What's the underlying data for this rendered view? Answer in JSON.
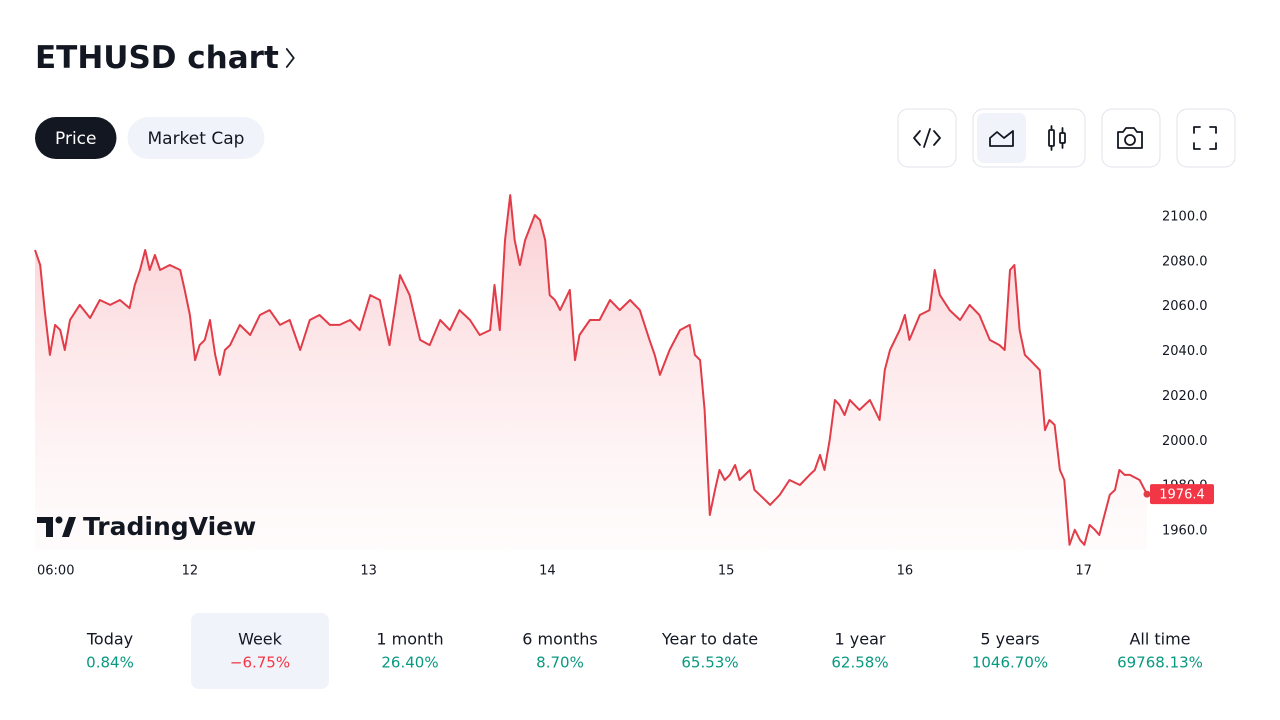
{
  "header": {
    "title": "ETHUSD chart"
  },
  "tabs": {
    "items": [
      "Price",
      "Market Cap"
    ],
    "active_index": 0
  },
  "watermark": "TradingView",
  "chart_data": {
    "type": "line",
    "color": "#e23c48",
    "x": [
      3.2,
      3.9,
      4.5,
      5.2,
      5.9,
      6.6,
      7.2,
      7.9,
      9.2,
      10.6,
      11.9,
      13.3,
      14.6,
      15.9,
      16.6,
      17.3,
      18.0,
      18.6,
      19.3,
      20.0,
      21.3,
      22.7,
      23.3,
      24.0,
      24.7,
      25.3,
      26.0,
      26.7,
      27.4,
      28.0,
      28.7,
      29.4,
      30.7,
      32.1,
      33.4,
      34.7,
      36.1,
      37.4,
      38.8,
      40.1,
      41.4,
      42.8,
      44.1,
      45.5,
      46.8,
      48.2,
      49.5,
      50.8,
      52.2,
      53.5,
      54.9,
      56.2,
      57.6,
      58.9,
      60.2,
      61.6,
      62.9,
      64.3,
      64.9,
      65.6,
      66.3,
      67.0,
      67.6,
      68.3,
      69.0,
      70.3,
      71.0,
      71.7,
      72.3,
      73.0,
      73.7,
      75.0,
      75.7,
      76.3,
      77.7,
      79.0,
      80.4,
      81.7,
      83.1,
      84.4,
      85.7,
      86.4,
      87.1,
      88.4,
      89.8,
      91.1,
      91.8,
      92.5,
      93.1,
      93.8,
      94.5,
      95.1,
      95.8,
      96.5,
      97.2,
      97.8,
      99.2,
      99.8,
      100.5,
      101.9,
      103.2,
      104.5,
      105.9,
      107.2,
      107.9,
      108.6,
      109.2,
      109.9,
      110.6,
      111.2,
      111.9,
      112.6,
      113.9,
      115.3,
      116.6,
      117.3,
      118.0,
      119.3,
      120.0,
      120.6,
      122.0,
      123.3,
      124.0,
      124.7,
      126.0,
      127.4,
      128.7,
      130.0,
      131.4,
      132.7,
      133.4,
      134.1,
      134.7,
      135.4,
      136.1,
      136.8,
      138.1,
      138.8,
      139.4,
      140.1,
      140.8,
      141.4,
      142.1,
      142.8,
      143.5,
      144.1,
      144.8,
      145.5,
      146.1,
      146.8,
      147.5,
      148.2,
      148.8,
      149.5,
      150.2,
      151.5,
      152.5
    ],
    "values": [
      2085.3,
      2078.6,
      2058.5,
      2038.5,
      2051.9,
      2049.6,
      2040.7,
      2054.1,
      2060.8,
      2055.0,
      2063.0,
      2060.8,
      2063.0,
      2059.4,
      2069.7,
      2076.4,
      2085.3,
      2076.4,
      2083.1,
      2076.4,
      2078.6,
      2076.4,
      2067.5,
      2056.3,
      2036.2,
      2042.9,
      2045.2,
      2054.1,
      2038.5,
      2029.6,
      2040.7,
      2042.9,
      2051.9,
      2047.4,
      2056.3,
      2058.5,
      2051.9,
      2054.1,
      2040.7,
      2054.1,
      2056.3,
      2051.9,
      2051.9,
      2054.1,
      2049.6,
      2065.2,
      2063.0,
      2042.9,
      2074.1,
      2065.2,
      2045.2,
      2042.9,
      2054.1,
      2049.6,
      2058.5,
      2054.1,
      2047.4,
      2049.6,
      2069.7,
      2049.6,
      2089.7,
      2109.8,
      2089.7,
      2078.6,
      2089.7,
      2100.9,
      2098.7,
      2089.7,
      2065.2,
      2063.0,
      2058.5,
      2067.5,
      2036.2,
      2047.4,
      2054.1,
      2054.1,
      2063.0,
      2058.5,
      2063.0,
      2058.5,
      2045.2,
      2038.5,
      2029.6,
      2040.7,
      2049.6,
      2051.9,
      2038.5,
      2036.2,
      2014.0,
      1967.1,
      1978.3,
      1987.2,
      1982.7,
      1985.0,
      1989.4,
      1982.7,
      1987.2,
      1978.3,
      1976.1,
      1971.6,
      1976.1,
      1982.7,
      1980.5,
      1985.0,
      1987.2,
      1993.9,
      1987.2,
      2000.6,
      2018.4,
      2016.2,
      2011.7,
      2018.4,
      2014.0,
      2018.4,
      2009.5,
      2031.8,
      2040.7,
      2049.6,
      2056.3,
      2045.2,
      2056.3,
      2058.5,
      2076.4,
      2065.2,
      2058.5,
      2054.1,
      2060.8,
      2056.3,
      2045.2,
      2042.9,
      2040.7,
      2076.4,
      2078.6,
      2049.6,
      2038.5,
      2036.2,
      2031.8,
      2005.0,
      2009.5,
      2007.3,
      1987.2,
      1982.7,
      1953.8,
      1960.5,
      1956.0,
      1953.8,
      1962.7,
      1960.5,
      1958.2,
      1967.1,
      1976.1,
      1978.3,
      1987.2,
      1985.0,
      1985.0,
      1982.7,
      1976.4
    ],
    "xlim": [
      3.2,
      152.5
    ],
    "xticks": [
      {
        "value": 6,
        "label": "06:00"
      },
      {
        "value": 24,
        "label": "12"
      },
      {
        "value": 48,
        "label": "13"
      },
      {
        "value": 72,
        "label": "14"
      },
      {
        "value": 96,
        "label": "15"
      },
      {
        "value": 120,
        "label": "16"
      },
      {
        "value": 144,
        "label": "17"
      }
    ],
    "ylim": [
      1951.5,
      2114.3
    ],
    "yticks": [
      {
        "value": 1960,
        "label": "1960.0"
      },
      {
        "value": 1980,
        "label": "1980.0"
      },
      {
        "value": 2000,
        "label": "2000.0"
      },
      {
        "value": 2020,
        "label": "2020.0"
      },
      {
        "value": 2040,
        "label": "2040.0"
      },
      {
        "value": 2060,
        "label": "2060.0"
      },
      {
        "value": 2080,
        "label": "2080.0"
      },
      {
        "value": 2100,
        "label": "2100.0"
      }
    ],
    "grid": false,
    "last_value_badge_color": "#f23645"
  },
  "periods": {
    "selected_index": 1,
    "items": [
      {
        "label": "Today",
        "change": "0.84%",
        "color": "#089981"
      },
      {
        "label": "Week",
        "change": "−6.75%",
        "color": "#f23645"
      },
      {
        "label": "1 month",
        "change": "26.40%",
        "color": "#089981"
      },
      {
        "label": "6 months",
        "change": "8.70%",
        "color": "#089981"
      },
      {
        "label": "Year to date",
        "change": "65.53%",
        "color": "#089981"
      },
      {
        "label": "1 year",
        "change": "62.58%",
        "color": "#089981"
      },
      {
        "label": "5 years",
        "change": "1046.70%",
        "color": "#089981"
      },
      {
        "label": "All time",
        "change": "69768.13%",
        "color": "#089981"
      }
    ]
  }
}
